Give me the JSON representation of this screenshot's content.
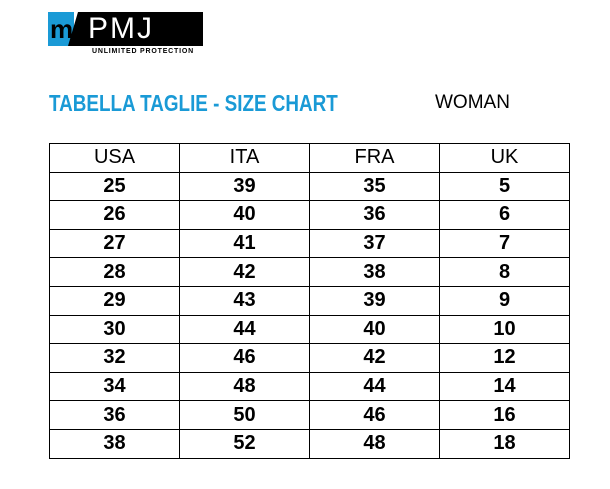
{
  "logo": {
    "mark": "m",
    "brand": "PMJ",
    "tagline": "UNLIMITED PROTECTION"
  },
  "title": "TABELLA TAGLIE - SIZE CHART",
  "subtitle": "WOMAN",
  "table": {
    "headers": [
      "USA",
      "ITA",
      "FRA",
      "UK"
    ],
    "rows": [
      [
        "25",
        "39",
        "35",
        "5"
      ],
      [
        "26",
        "40",
        "36",
        "6"
      ],
      [
        "27",
        "41",
        "37",
        "7"
      ],
      [
        "28",
        "42",
        "38",
        "8"
      ],
      [
        "29",
        "43",
        "39",
        "9"
      ],
      [
        "30",
        "44",
        "40",
        "10"
      ],
      [
        "32",
        "46",
        "42",
        "12"
      ],
      [
        "34",
        "48",
        "44",
        "14"
      ],
      [
        "36",
        "50",
        "46",
        "16"
      ],
      [
        "38",
        "52",
        "48",
        "18"
      ]
    ]
  },
  "colors": {
    "brand_blue": "#1a9ad6"
  }
}
